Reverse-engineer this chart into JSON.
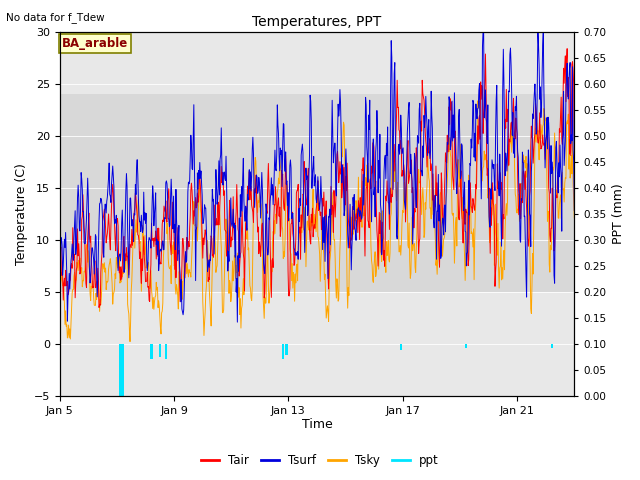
{
  "title": "Temperatures, PPT",
  "no_data_text": "No data for f_Tdew",
  "location_label": "BA_arable",
  "xlabel": "Time",
  "ylabel_left": "Temperature (C)",
  "ylabel_right": "PPT (mm)",
  "ylim_left": [
    -5,
    30
  ],
  "ylim_right": [
    0.0,
    0.7
  ],
  "yticks_left": [
    -5,
    0,
    5,
    10,
    15,
    20,
    25,
    30
  ],
  "yticks_right": [
    0.0,
    0.05,
    0.1,
    0.15,
    0.2,
    0.25,
    0.3,
    0.35,
    0.4,
    0.45,
    0.5,
    0.55,
    0.6,
    0.65,
    0.7
  ],
  "xtick_labels": [
    "Jan 5",
    "Jan 9",
    "Jan 13",
    "Jan 17",
    "Jan 21"
  ],
  "xtick_pos": [
    0,
    4,
    8,
    12,
    16
  ],
  "shaded_band": [
    5,
    24
  ],
  "plot_bg": "#e8e8e8",
  "shaded_color": "#d8d8d8",
  "colors": {
    "Tair": "#ff0000",
    "Tsurf": "#0000dd",
    "Tsky": "#ffa500",
    "ppt": "#00e5ff"
  },
  "legend_labels": [
    "Tair",
    "Tsurf",
    "Tsky",
    "ppt"
  ],
  "figsize": [
    6.4,
    4.8
  ],
  "dpi": 100,
  "seed": 7
}
